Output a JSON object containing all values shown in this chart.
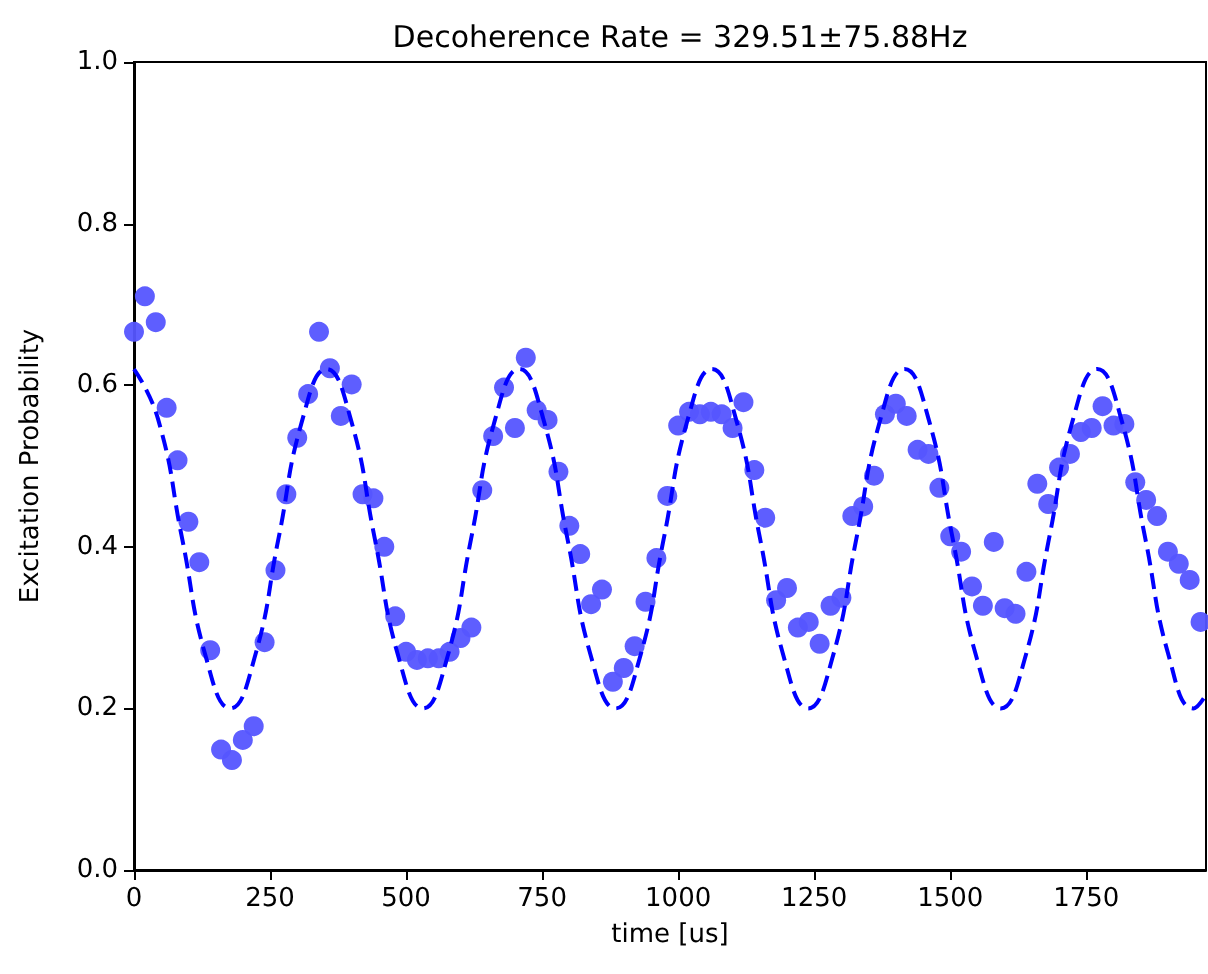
{
  "chart_data": {
    "type": "scatter",
    "title": "Decoherence Rate = 329.51±75.88Hz",
    "xlabel": "time [us]",
    "ylabel": "Excitation Probability",
    "xlim": [
      0,
      1970
    ],
    "xticks": [
      0,
      250,
      500,
      750,
      1000,
      1250,
      1500,
      1750
    ],
    "ylim": [
      0,
      1
    ],
    "yticks": [
      {
        "value": 0,
        "label": "0.0"
      },
      0.2,
      0.4,
      0.6,
      0.8,
      {
        "value": 1,
        "label": "1.0"
      }
    ],
    "marker": "circle",
    "series": [
      {
        "type": "scatter",
        "color": "#5555ff",
        "x": [
          0,
          20,
          40,
          60,
          80,
          100,
          120,
          140,
          160,
          180,
          200,
          220,
          240,
          260,
          280,
          300,
          320,
          340,
          360,
          380,
          400,
          420,
          440,
          460,
          480,
          500,
          520,
          540,
          560,
          580,
          600,
          620,
          640,
          660,
          680,
          700,
          720,
          740,
          760,
          780,
          800,
          820,
          840,
          860,
          880,
          900,
          920,
          940,
          960,
          980,
          1000,
          1020,
          1040,
          1060,
          1080,
          1100,
          1120,
          1140,
          1160,
          1180,
          1200,
          1220,
          1240,
          1260,
          1280,
          1300,
          1320,
          1340,
          1360,
          1380,
          1400,
          1420,
          1440,
          1460,
          1480,
          1500,
          1520,
          1540,
          1560,
          1580,
          1600,
          1620,
          1640,
          1660,
          1680,
          1700,
          1720,
          1740,
          1760,
          1780,
          1800,
          1820,
          1840,
          1860,
          1880,
          1900,
          1920,
          1940,
          1960
        ],
        "values": [
          0.666,
          0.71,
          0.678,
          0.572,
          0.507,
          0.431,
          0.381,
          0.272,
          0.149,
          0.136,
          0.161,
          0.178,
          0.282,
          0.371,
          0.465,
          0.535,
          0.589,
          0.666,
          0.621,
          0.562,
          0.601,
          0.465,
          0.46,
          0.4,
          0.314,
          0.27,
          0.26,
          0.262,
          0.262,
          0.27,
          0.287,
          0.3,
          0.47,
          0.537,
          0.597,
          0.547,
          0.634,
          0.569,
          0.557,
          0.493,
          0.426,
          0.391,
          0.329,
          0.347,
          0.233,
          0.25,
          0.277,
          0.332,
          0.386,
          0.463,
          0.55,
          0.567,
          0.564,
          0.567,
          0.564,
          0.547,
          0.579,
          0.495,
          0.436,
          0.334,
          0.349,
          0.3,
          0.307,
          0.28,
          0.327,
          0.337,
          0.438,
          0.45,
          0.488,
          0.564,
          0.577,
          0.562,
          0.52,
          0.515,
          0.473,
          0.413,
          0.394,
          0.351,
          0.327,
          0.406,
          0.324,
          0.317,
          0.369,
          0.478,
          0.453,
          0.498,
          0.515,
          0.542,
          0.547,
          0.574,
          0.55,
          0.552,
          0.48,
          0.458,
          0.438,
          0.394,
          0.379,
          0.359,
          0.307
        ]
      },
      {
        "type": "line",
        "color": "#0000ff",
        "line_style": "dashed",
        "marker": "none",
        "x": [
          0,
          44.25,
          88.5,
          132.75,
          177,
          221.25,
          265.5,
          309.75,
          354,
          398.25,
          442.5,
          486.75,
          531,
          575.25,
          619.5,
          663.75,
          708,
          752.25,
          796.5,
          840.75,
          885,
          929.25,
          973.5,
          1017.75,
          1062,
          1106.25,
          1150.5,
          1194.75,
          1239,
          1283.25,
          1327.5,
          1371.75,
          1416,
          1460.25,
          1504.5,
          1548.75,
          1593,
          1637.25,
          1681.5,
          1725.75,
          1770,
          1814.25,
          1858.5,
          1902.75,
          1947,
          1970
        ],
        "values": [
          0.62,
          0.558,
          0.41,
          0.262,
          0.2,
          0.262,
          0.41,
          0.558,
          0.62,
          0.558,
          0.41,
          0.262,
          0.2,
          0.262,
          0.41,
          0.558,
          0.62,
          0.558,
          0.41,
          0.262,
          0.2,
          0.262,
          0.41,
          0.558,
          0.62,
          0.558,
          0.41,
          0.262,
          0.2,
          0.262,
          0.41,
          0.558,
          0.62,
          0.558,
          0.41,
          0.262,
          0.2,
          0.262,
          0.41,
          0.558,
          0.62,
          0.558,
          0.41,
          0.262,
          0.2,
          0.217
        ]
      }
    ]
  }
}
